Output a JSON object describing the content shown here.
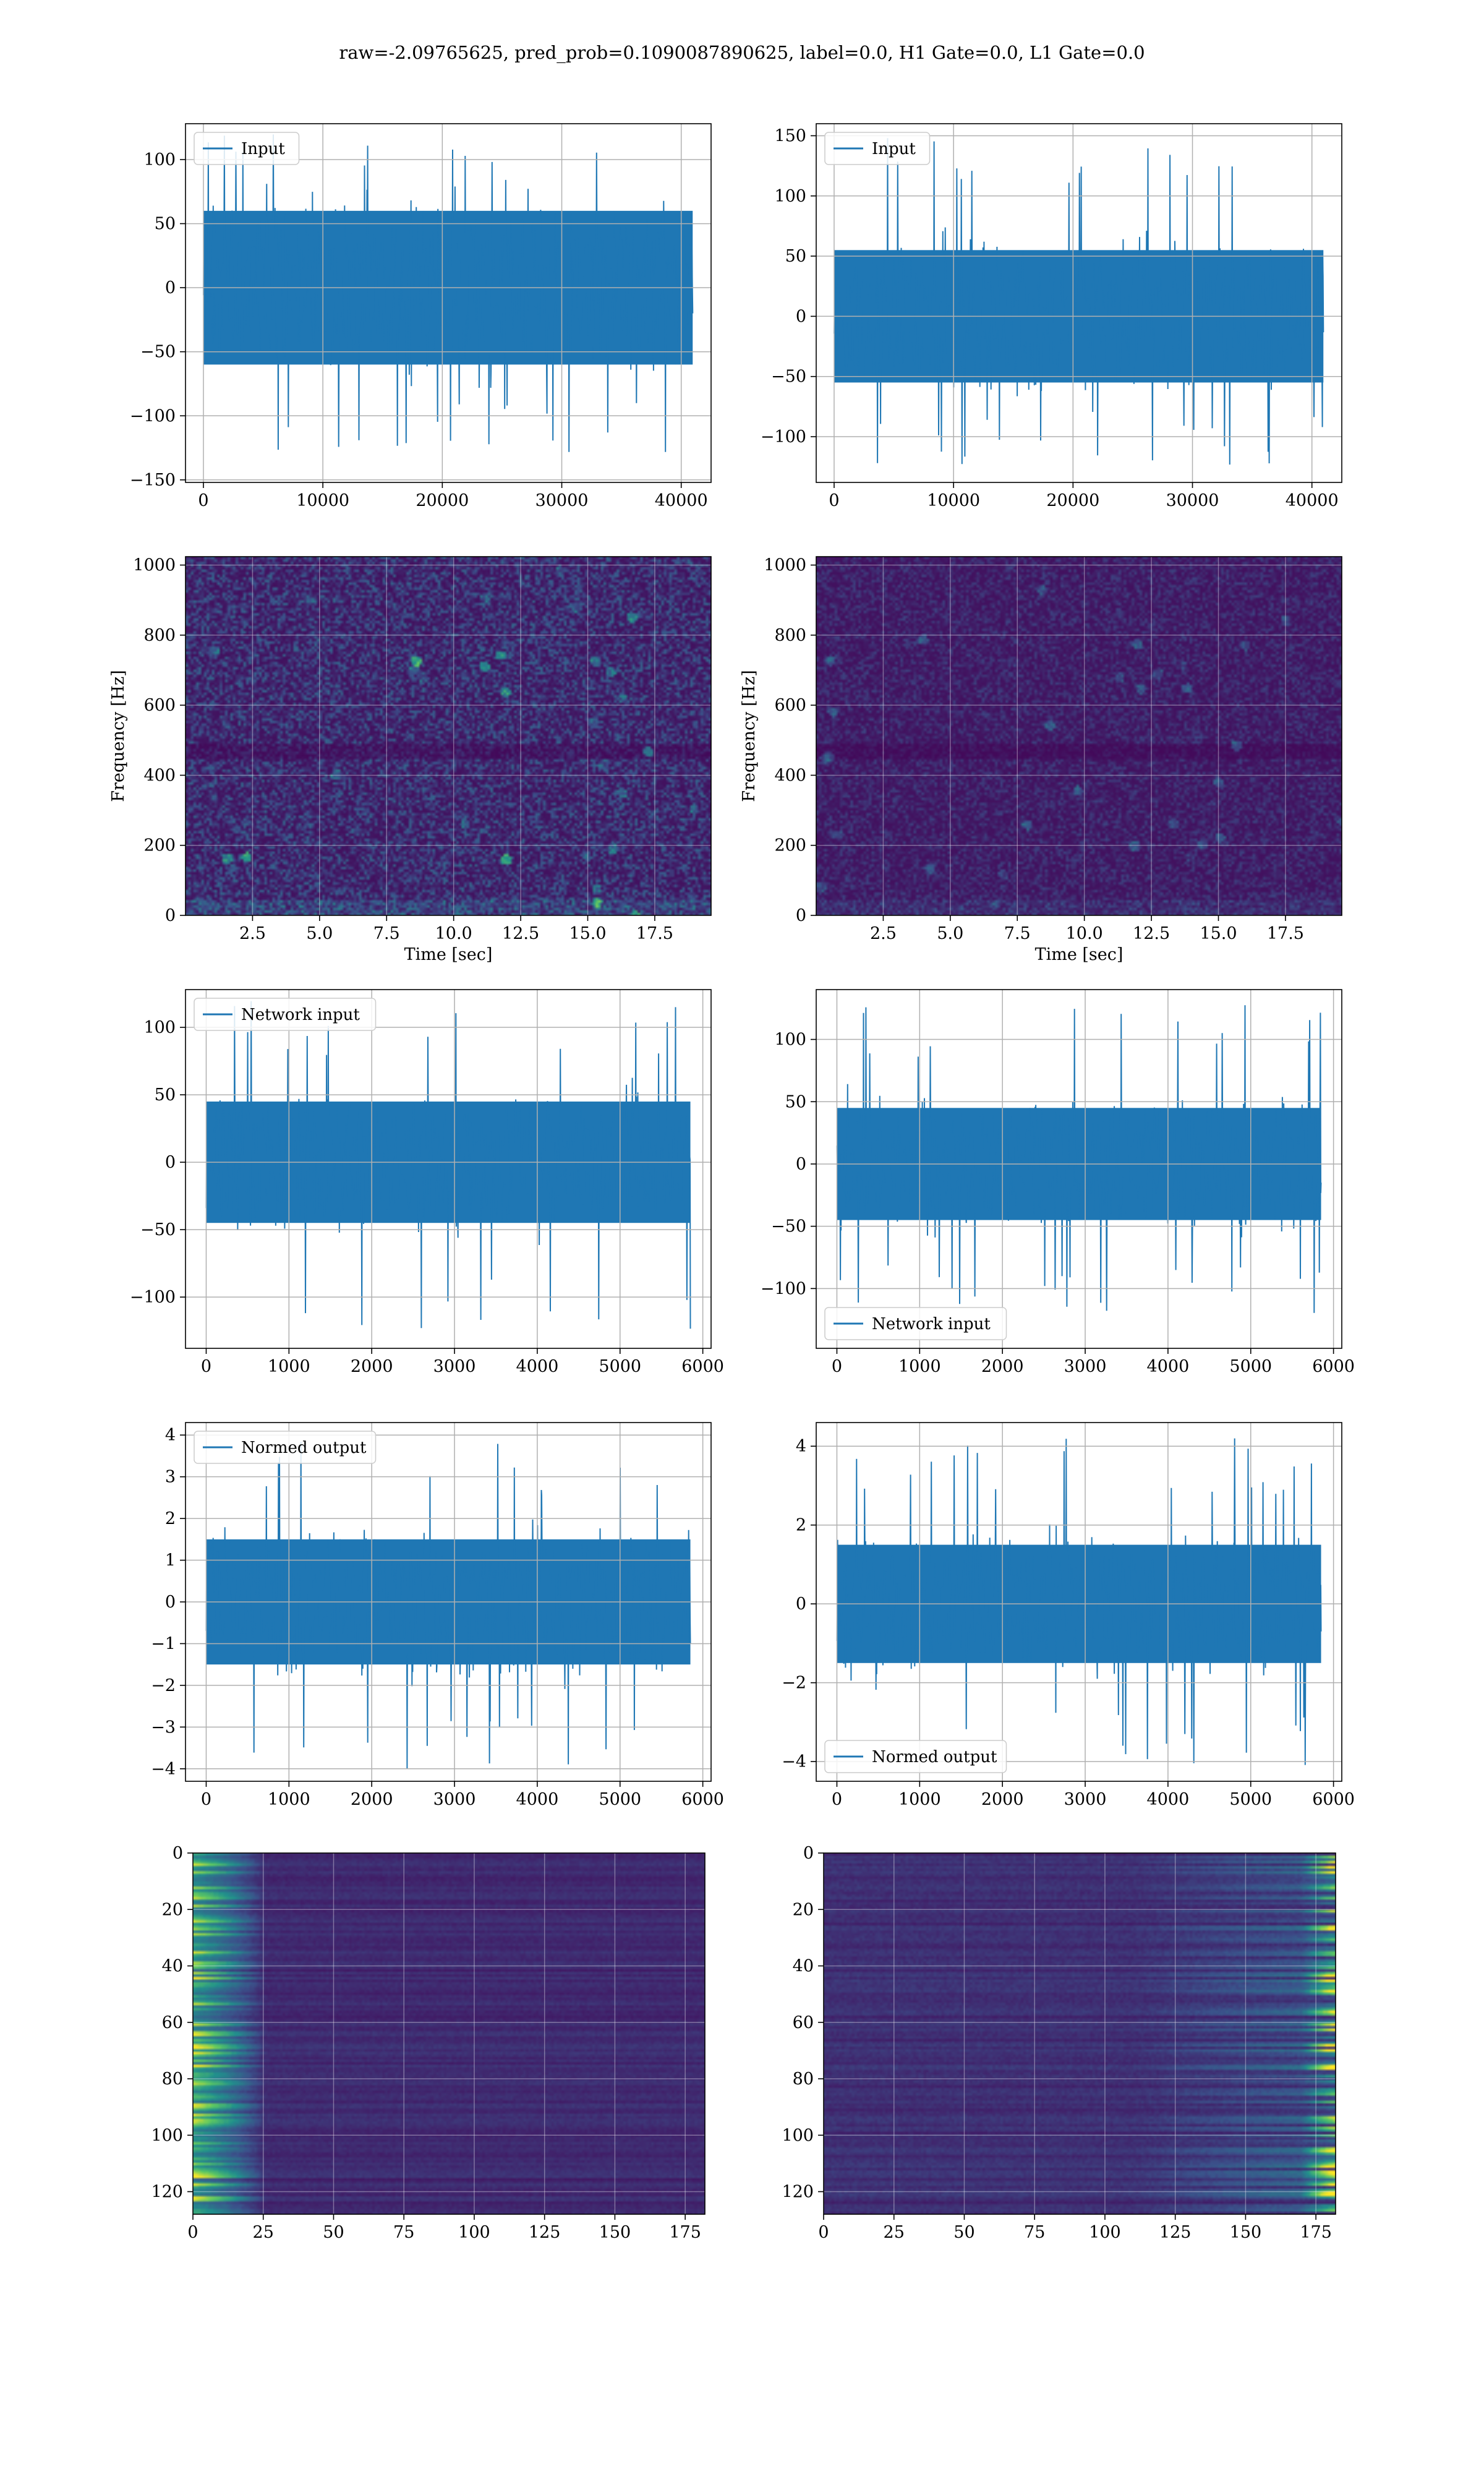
{
  "figure": {
    "title": "raw=-2.09765625, pred_prob=0.1090087890625, label=0.0, H1 Gate=0.0, L1 Gate=0.0"
  },
  "colors": {
    "line": "#1f77b4",
    "viridis_dark": "#440154",
    "viridis_teal": "#21918c",
    "viridis_yellow": "#fde725",
    "grid": "#b0b0b0"
  },
  "chart_data": [
    {
      "id": "input-h1",
      "type": "line",
      "series": [
        {
          "name": "Input"
        }
      ],
      "legend_position": "upper-left",
      "grid": true,
      "xlim": [
        -1500,
        42500
      ],
      "ylim": [
        -152,
        128
      ],
      "xticks": [
        0,
        10000,
        20000,
        30000,
        40000
      ],
      "yticks": [
        -150,
        -100,
        -50,
        0,
        50,
        100
      ],
      "x_range": [
        0,
        40960
      ],
      "envelope": {
        "typical": [
          -60,
          60
        ],
        "peak_max": 120,
        "peak_min": -140
      }
    },
    {
      "id": "input-l1",
      "type": "line",
      "series": [
        {
          "name": "Input"
        }
      ],
      "legend_position": "upper-left",
      "grid": true,
      "xlim": [
        -1500,
        42500
      ],
      "ylim": [
        -138,
        160
      ],
      "xticks": [
        0,
        10000,
        20000,
        30000,
        40000
      ],
      "yticks": [
        -100,
        -50,
        0,
        50,
        100,
        150
      ],
      "x_range": [
        0,
        40960
      ],
      "envelope": {
        "typical": [
          -55,
          55
        ],
        "peak_max": 150,
        "peak_min": -125
      }
    },
    {
      "id": "spectrogram-h1",
      "type": "heatmap",
      "colormap": "viridis",
      "grid": true,
      "xlim": [
        0,
        19.6
      ],
      "ylim": [
        0,
        1024
      ],
      "xticks": [
        2.5,
        5.0,
        7.5,
        10.0,
        12.5,
        15.0,
        17.5
      ],
      "yticks": [
        0,
        200,
        400,
        600,
        800,
        1000
      ],
      "xlabel": "Time [sec]",
      "ylabel": "Frequency [Hz]",
      "brightness": "medium"
    },
    {
      "id": "spectrogram-l1",
      "type": "heatmap",
      "colormap": "viridis",
      "grid": true,
      "xlim": [
        0,
        19.6
      ],
      "ylim": [
        0,
        1024
      ],
      "xticks": [
        2.5,
        5.0,
        7.5,
        10.0,
        12.5,
        15.0,
        17.5
      ],
      "yticks": [
        0,
        200,
        400,
        600,
        800,
        1000
      ],
      "xlabel": "Time [sec]",
      "ylabel": "Frequency [Hz]",
      "brightness": "low"
    },
    {
      "id": "network-input-h1",
      "type": "line",
      "series": [
        {
          "name": "Network input"
        }
      ],
      "legend_position": "upper-left",
      "grid": true,
      "xlim": [
        -250,
        6100
      ],
      "ylim": [
        -138,
        128
      ],
      "xticks": [
        0,
        1000,
        2000,
        3000,
        4000,
        5000,
        6000
      ],
      "yticks": [
        -100,
        -50,
        0,
        50,
        100
      ],
      "x_range": [
        0,
        5850
      ],
      "envelope": {
        "typical": [
          -45,
          45
        ],
        "peak_max": 120,
        "peak_min": -125
      }
    },
    {
      "id": "network-input-l1",
      "type": "line",
      "series": [
        {
          "name": "Network input"
        }
      ],
      "legend_position": "lower-left",
      "grid": true,
      "xlim": [
        -250,
        6100
      ],
      "ylim": [
        -148,
        140
      ],
      "xticks": [
        0,
        1000,
        2000,
        3000,
        4000,
        5000,
        6000
      ],
      "yticks": [
        -100,
        -50,
        0,
        50,
        100
      ],
      "x_range": [
        0,
        5850
      ],
      "envelope": {
        "typical": [
          -45,
          45
        ],
        "peak_max": 128,
        "peak_min": -120
      }
    },
    {
      "id": "normed-output-h1",
      "type": "line",
      "series": [
        {
          "name": "Normed output"
        }
      ],
      "legend_position": "upper-left",
      "grid": true,
      "xlim": [
        -250,
        6100
      ],
      "ylim": [
        -4.3,
        4.3
      ],
      "xticks": [
        0,
        1000,
        2000,
        3000,
        4000,
        5000,
        6000
      ],
      "yticks": [
        -4,
        -3,
        -2,
        -1,
        0,
        1,
        2,
        3,
        4
      ],
      "x_range": [
        0,
        5850
      ],
      "envelope": {
        "typical": [
          -1.5,
          1.5
        ],
        "peak_max": 3.9,
        "peak_min": -4.0
      }
    },
    {
      "id": "normed-output-l1",
      "type": "line",
      "series": [
        {
          "name": "Normed output"
        }
      ],
      "legend_position": "lower-left",
      "grid": true,
      "xlim": [
        -250,
        6100
      ],
      "ylim": [
        -4.5,
        4.6
      ],
      "xticks": [
        0,
        1000,
        2000,
        3000,
        4000,
        5000,
        6000
      ],
      "yticks": [
        -4,
        -2,
        0,
        2,
        4
      ],
      "x_range": [
        0,
        5850
      ],
      "envelope": {
        "typical": [
          -1.5,
          1.5
        ],
        "peak_max": 4.2,
        "peak_min": -4.1
      }
    },
    {
      "id": "feature-map-h1",
      "type": "heatmap",
      "colormap": "viridis",
      "grid": true,
      "xlim": [
        0,
        182
      ],
      "ylim": [
        128,
        0
      ],
      "xticks": [
        0,
        25,
        50,
        75,
        100,
        125,
        150,
        175
      ],
      "yticks": [
        0,
        20,
        40,
        60,
        80,
        100,
        120
      ],
      "hot_region": "left"
    },
    {
      "id": "feature-map-l1",
      "type": "heatmap",
      "colormap": "viridis",
      "grid": true,
      "xlim": [
        0,
        182
      ],
      "ylim": [
        128,
        0
      ],
      "xticks": [
        0,
        25,
        50,
        75,
        100,
        125,
        150,
        175
      ],
      "yticks": [
        0,
        20,
        40,
        60,
        80,
        100,
        120
      ],
      "hot_region": "right"
    }
  ]
}
